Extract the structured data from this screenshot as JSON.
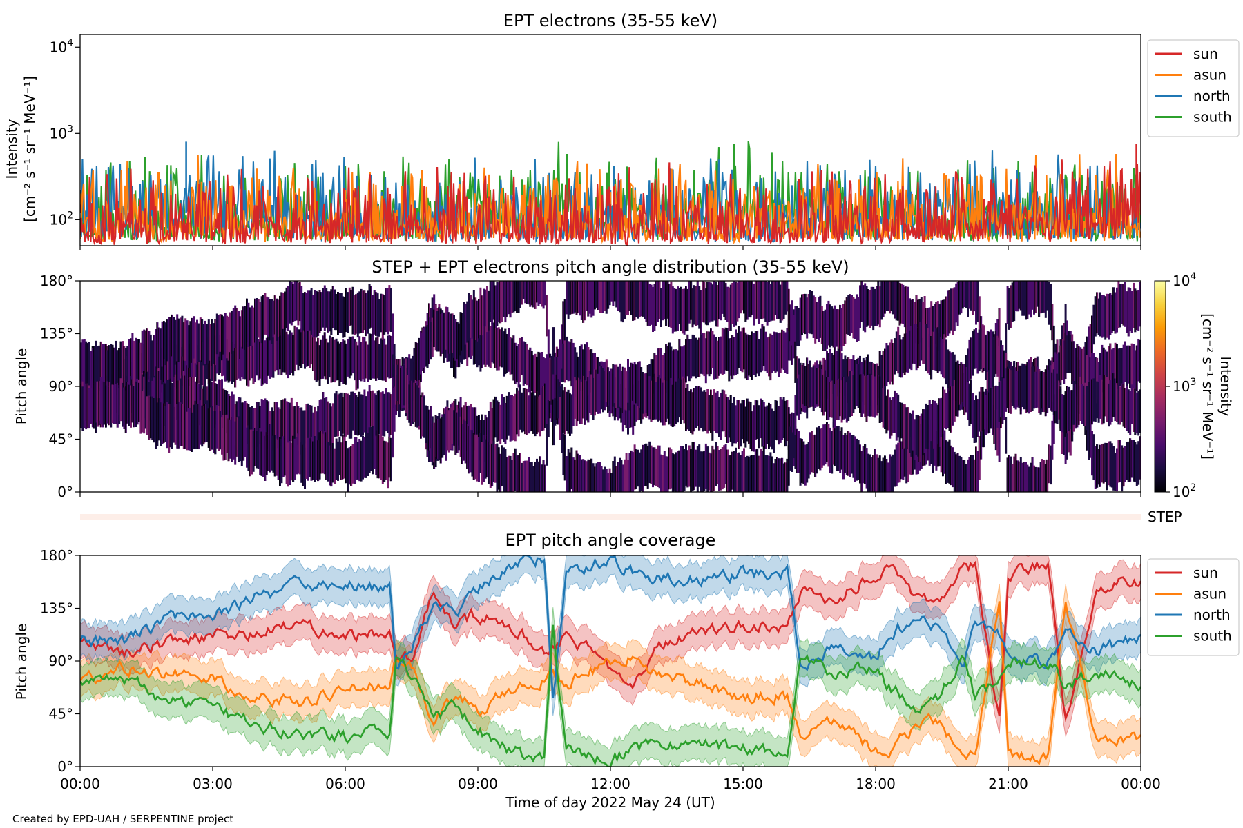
{
  "chart_data": [
    {
      "type": "line",
      "title": "EPT electrons (35-55 keV)",
      "ylabel_lines": [
        "Intensity",
        "[cm⁻² s⁻¹ sr⁻¹ MeV⁻¹]"
      ],
      "yscale": "log",
      "ylim": [
        50,
        14000
      ],
      "yticks": [
        {
          "value": 100,
          "base": "10",
          "exp": "2"
        },
        {
          "value": 1000,
          "base": "10",
          "exp": "3"
        },
        {
          "value": 10000,
          "base": "10",
          "exp": "4"
        }
      ],
      "xlim": [
        0,
        24
      ],
      "legend": {
        "placement": "outside-right-top"
      },
      "series": [
        {
          "name": "sun",
          "color": "#d62728",
          "typical_range": [
            55,
            450
          ],
          "x": [
            0,
            6,
            12,
            18,
            22.5,
            23.9
          ],
          "y": [
            150,
            160,
            150,
            160,
            300,
            750
          ]
        },
        {
          "name": "asun",
          "color": "#ff7f0e",
          "typical_range": [
            55,
            500
          ],
          "x": [
            0,
            6,
            12,
            18,
            24
          ],
          "y": [
            200,
            220,
            210,
            220,
            230
          ]
        },
        {
          "name": "north",
          "color": "#1f77b4",
          "typical_range": [
            55,
            500
          ],
          "x": [
            0,
            2.4,
            6,
            12,
            18,
            24
          ],
          "y": [
            220,
            800,
            230,
            220,
            230,
            230
          ]
        },
        {
          "name": "south",
          "color": "#2ca02c",
          "typical_range": [
            55,
            550
          ],
          "x": [
            0,
            6,
            14.8,
            18,
            24
          ],
          "y": [
            220,
            230,
            750,
            230,
            220
          ]
        }
      ]
    },
    {
      "type": "heatmap",
      "title": "STEP + EPT electrons pitch angle distribution (35-55 keV)",
      "ylabel": "Pitch angle",
      "yticks": [
        "0°",
        "45°",
        "90°",
        "135°",
        "180°"
      ],
      "ylim": [
        0,
        180
      ],
      "xlim": [
        0,
        24
      ],
      "colorbar": {
        "label_lines": [
          "Intensity",
          "[cm⁻² s⁻¹ sr⁻¹ MeV⁻¹]"
        ],
        "scale": "log",
        "range": [
          100,
          10000
        ],
        "colormap": "inferno",
        "ticks": [
          {
            "value": 100,
            "base": "10",
            "exp": "2"
          },
          {
            "value": 1000,
            "base": "10",
            "exp": "3"
          },
          {
            "value": 10000,
            "base": "10",
            "exp": "4"
          }
        ]
      },
      "values_note": "filled where pitch angle within each EPT telescope's coverage band; intensity ≈ 10^2–10^2.6"
    },
    {
      "type": "band",
      "label": "STEP",
      "color": "#fdeee8"
    },
    {
      "type": "line",
      "title": "EPT pitch angle coverage",
      "ylabel": "Pitch angle",
      "yticks": [
        "0°",
        "45°",
        "90°",
        "135°",
        "180°"
      ],
      "ylim": [
        0,
        180
      ],
      "xlim": [
        0,
        24
      ],
      "band_halfwidth_deg": 15,
      "legend": {
        "placement": "outside-right-top"
      },
      "series": [
        {
          "name": "sun",
          "color": "#d62728",
          "x": [
            0,
            1,
            2,
            3,
            4,
            5,
            6,
            7,
            7.15,
            7.5,
            8,
            8.5,
            9,
            10,
            10.5,
            10.7,
            11,
            12,
            12.5,
            13,
            14,
            15,
            16,
            16.3,
            17,
            18,
            18.25,
            19,
            19.4,
            20,
            20.25,
            20.8,
            21,
            21.9,
            22.3,
            23,
            24
          ],
          "y": [
            107,
            97,
            107,
            112,
            112,
            122,
            113,
            113,
            88,
            95,
            148,
            118,
            130,
            112,
            100,
            100,
            112,
            85,
            75,
            100,
            115,
            120,
            120,
            150,
            140,
            165,
            170,
            140,
            140,
            170,
            172,
            40,
            165,
            172,
            40,
            155,
            158
          ]
        },
        {
          "name": "asun",
          "color": "#ff7f0e",
          "x": [
            0,
            1,
            2,
            3,
            4,
            5,
            6,
            7,
            7.15,
            7.5,
            8,
            8.5,
            9,
            10,
            10.5,
            10.7,
            11,
            12,
            12.5,
            13,
            14,
            15,
            16,
            16.3,
            17,
            18,
            18.25,
            19,
            19.4,
            20,
            20.25,
            20.8,
            21,
            21.9,
            22.3,
            23,
            24
          ],
          "y": [
            73,
            83,
            80,
            75,
            60,
            55,
            65,
            70,
            90,
            85,
            38,
            60,
            48,
            68,
            75,
            80,
            70,
            90,
            95,
            80,
            70,
            60,
            60,
            30,
            40,
            15,
            10,
            40,
            40,
            10,
            8,
            140,
            10,
            8,
            140,
            25,
            25
          ]
        },
        {
          "name": "north",
          "color": "#1f77b4",
          "x": [
            0,
            1,
            2,
            3,
            4,
            5,
            6,
            7,
            7.15,
            7.5,
            8,
            8.5,
            9,
            10,
            10.5,
            10.7,
            11,
            12,
            12.5,
            13,
            14,
            15,
            16,
            16.3,
            17,
            18,
            18.25,
            19,
            19.4,
            20,
            20.25,
            20.8,
            21,
            21.9,
            22.3,
            23,
            24
          ],
          "y": [
            107,
            107,
            125,
            130,
            145,
            155,
            155,
            150,
            85,
            100,
            140,
            130,
            150,
            175,
            178,
            60,
            165,
            178,
            165,
            160,
            160,
            165,
            165,
            85,
            100,
            90,
            110,
            130,
            120,
            90,
            120,
            110,
            90,
            90,
            110,
            100,
            110
          ]
        },
        {
          "name": "south",
          "color": "#2ca02c",
          "x": [
            0,
            1,
            2,
            3,
            4,
            5,
            6,
            7,
            7.15,
            7.5,
            8,
            8.5,
            9,
            10,
            10.5,
            10.7,
            11,
            12,
            12.5,
            13,
            14,
            15,
            16,
            16.3,
            17,
            18,
            18.25,
            19,
            19.4,
            20,
            20.25,
            20.8,
            21,
            21.9,
            22.3,
            23,
            24
          ],
          "y": [
            73,
            75,
            55,
            50,
            35,
            30,
            25,
            30,
            95,
            80,
            40,
            50,
            30,
            10,
            5,
            120,
            15,
            5,
            15,
            20,
            20,
            15,
            15,
            95,
            80,
            85,
            70,
            50,
            60,
            90,
            60,
            70,
            90,
            90,
            70,
            80,
            70
          ]
        }
      ],
      "xlabel": "Time of day 2022 May 24 (UT)",
      "xticks": [
        "00:00",
        "03:00",
        "06:00",
        "09:00",
        "12:00",
        "15:00",
        "18:00",
        "21:00",
        "00:00"
      ]
    }
  ],
  "footer": "Created by EPD-UAH / SERPENTINE project"
}
